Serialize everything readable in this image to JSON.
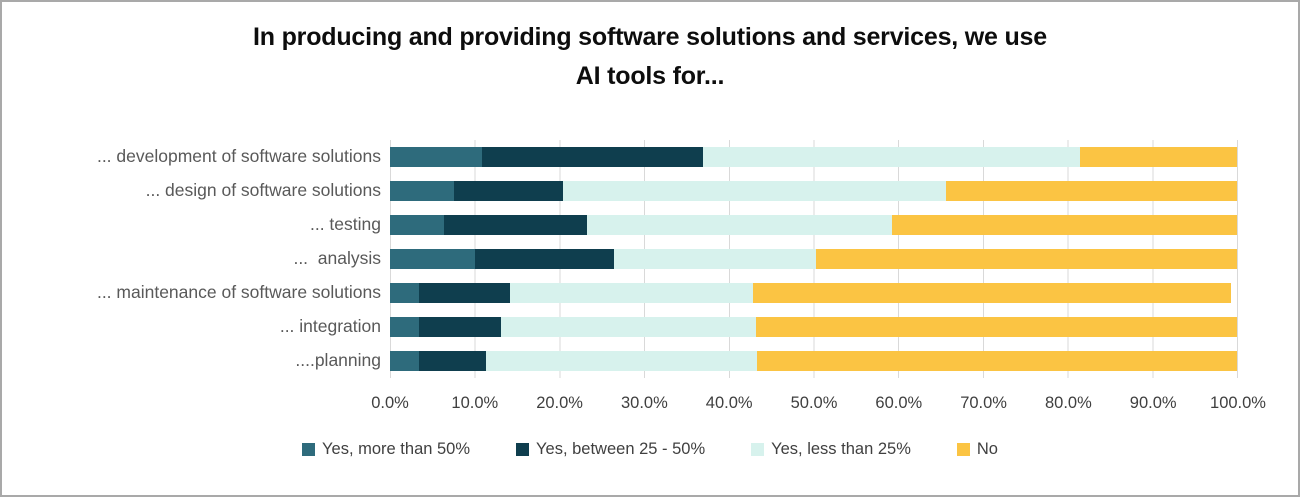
{
  "title": {
    "line1": "In producing and providing software solutions and services, we use",
    "line2": "AI tools for..."
  },
  "chart_data": {
    "type": "bar",
    "stacked": true,
    "orientation": "horizontal",
    "title": "In producing and providing software solutions and services, we use AI tools for...",
    "categories": [
      "... development of software solutions",
      "... design of software solutions",
      "... testing",
      "...  analysis",
      "... maintenance of software solutions",
      "... integration",
      "....planning"
    ],
    "series": [
      {
        "name": "Yes, more than 50%",
        "color": "#2E6B7C",
        "values": [
          10.9,
          7.5,
          6.4,
          10.0,
          3.4,
          3.4,
          3.4
        ]
      },
      {
        "name": "Yes, between 25 - 50%",
        "color": "#0F3E4E",
        "values": [
          26.1,
          12.9,
          16.9,
          16.5,
          10.8,
          9.7,
          7.9
        ]
      },
      {
        "name": "Yes, less than 25%",
        "color": "#D7F2ED",
        "values": [
          44.5,
          45.2,
          36.0,
          23.8,
          28.6,
          30.1,
          32.0
        ]
      },
      {
        "name": "No",
        "color": "#FBC443",
        "values": [
          18.5,
          34.4,
          40.7,
          49.7,
          56.5,
          56.8,
          56.7
        ]
      }
    ],
    "x_ticks": [
      "0.0%",
      "10.0%",
      "20.0%",
      "30.0%",
      "40.0%",
      "50.0%",
      "60.0%",
      "70.0%",
      "80.0%",
      "90.0%",
      "100.0%"
    ],
    "xlim": [
      0,
      100
    ],
    "grid": "vertical",
    "gridline_color": "#D9D9D9",
    "legend_position": "bottom"
  }
}
